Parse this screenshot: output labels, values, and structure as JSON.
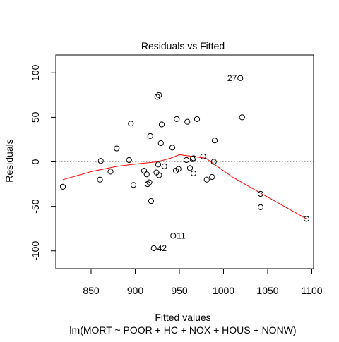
{
  "chart_data": {
    "type": "scatter",
    "title": "Residuals vs Fitted",
    "xlabel": "Fitted values",
    "subtitle": "lm(MORT ~ POOR + HC + NOX + HOUS + NONW)",
    "ylabel": "Residuals",
    "xlim": [
      810,
      1102
    ],
    "ylim": [
      -120,
      120
    ],
    "x_ticks": [
      850,
      900,
      950,
      1000,
      1050,
      1100
    ],
    "y_ticks": [
      -100,
      -50,
      0,
      50,
      100
    ],
    "reference_line": 0,
    "colors": {
      "points": "#000000",
      "smooth": "#ff0000",
      "reference": "#a0a0a0"
    },
    "points": [
      {
        "x": 818,
        "y": -28
      },
      {
        "x": 860,
        "y": -20
      },
      {
        "x": 861,
        "y": 1
      },
      {
        "x": 872,
        "y": -11
      },
      {
        "x": 879,
        "y": 15
      },
      {
        "x": 893,
        "y": 2
      },
      {
        "x": 895,
        "y": 43
      },
      {
        "x": 898,
        "y": -26
      },
      {
        "x": 910,
        "y": -10
      },
      {
        "x": 913,
        "y": -14
      },
      {
        "x": 914,
        "y": -25
      },
      {
        "x": 916,
        "y": -23
      },
      {
        "x": 917,
        "y": 29
      },
      {
        "x": 918,
        "y": -44
      },
      {
        "x": 921,
        "y": -97,
        "label": "42"
      },
      {
        "x": 924,
        "y": -12
      },
      {
        "x": 925,
        "y": 73
      },
      {
        "x": 926,
        "y": -3
      },
      {
        "x": 927,
        "y": 75
      },
      {
        "x": 927,
        "y": -15
      },
      {
        "x": 929,
        "y": 21
      },
      {
        "x": 930,
        "y": 42
      },
      {
        "x": 933,
        "y": -5
      },
      {
        "x": 942,
        "y": 16
      },
      {
        "x": 943,
        "y": -83,
        "label": "11"
      },
      {
        "x": 946,
        "y": -10
      },
      {
        "x": 947,
        "y": 48
      },
      {
        "x": 949,
        "y": -8
      },
      {
        "x": 958,
        "y": 2
      },
      {
        "x": 959,
        "y": 45
      },
      {
        "x": 962,
        "y": -7
      },
      {
        "x": 965,
        "y": 3
      },
      {
        "x": 966,
        "y": 4
      },
      {
        "x": 966,
        "y": -13
      },
      {
        "x": 970,
        "y": 48
      },
      {
        "x": 977,
        "y": 6
      },
      {
        "x": 981,
        "y": -20
      },
      {
        "x": 987,
        "y": -17
      },
      {
        "x": 989,
        "y": 0
      },
      {
        "x": 990,
        "y": 24
      },
      {
        "x": 1019,
        "y": 94,
        "label": "27"
      },
      {
        "x": 1021,
        "y": 50
      },
      {
        "x": 1042,
        "y": -36
      },
      {
        "x": 1042,
        "y": -51
      },
      {
        "x": 1094,
        "y": -64
      }
    ],
    "smooth_line": [
      {
        "x": 818,
        "y": -20
      },
      {
        "x": 850,
        "y": -11
      },
      {
        "x": 880,
        "y": -5
      },
      {
        "x": 905,
        "y": -2
      },
      {
        "x": 925,
        "y": 0
      },
      {
        "x": 940,
        "y": 4
      },
      {
        "x": 950,
        "y": 8
      },
      {
        "x": 965,
        "y": 6
      },
      {
        "x": 980,
        "y": 4
      },
      {
        "x": 990,
        "y": -3
      },
      {
        "x": 1010,
        "y": -17
      },
      {
        "x": 1040,
        "y": -34
      },
      {
        "x": 1065,
        "y": -48
      },
      {
        "x": 1094,
        "y": -64
      }
    ]
  }
}
